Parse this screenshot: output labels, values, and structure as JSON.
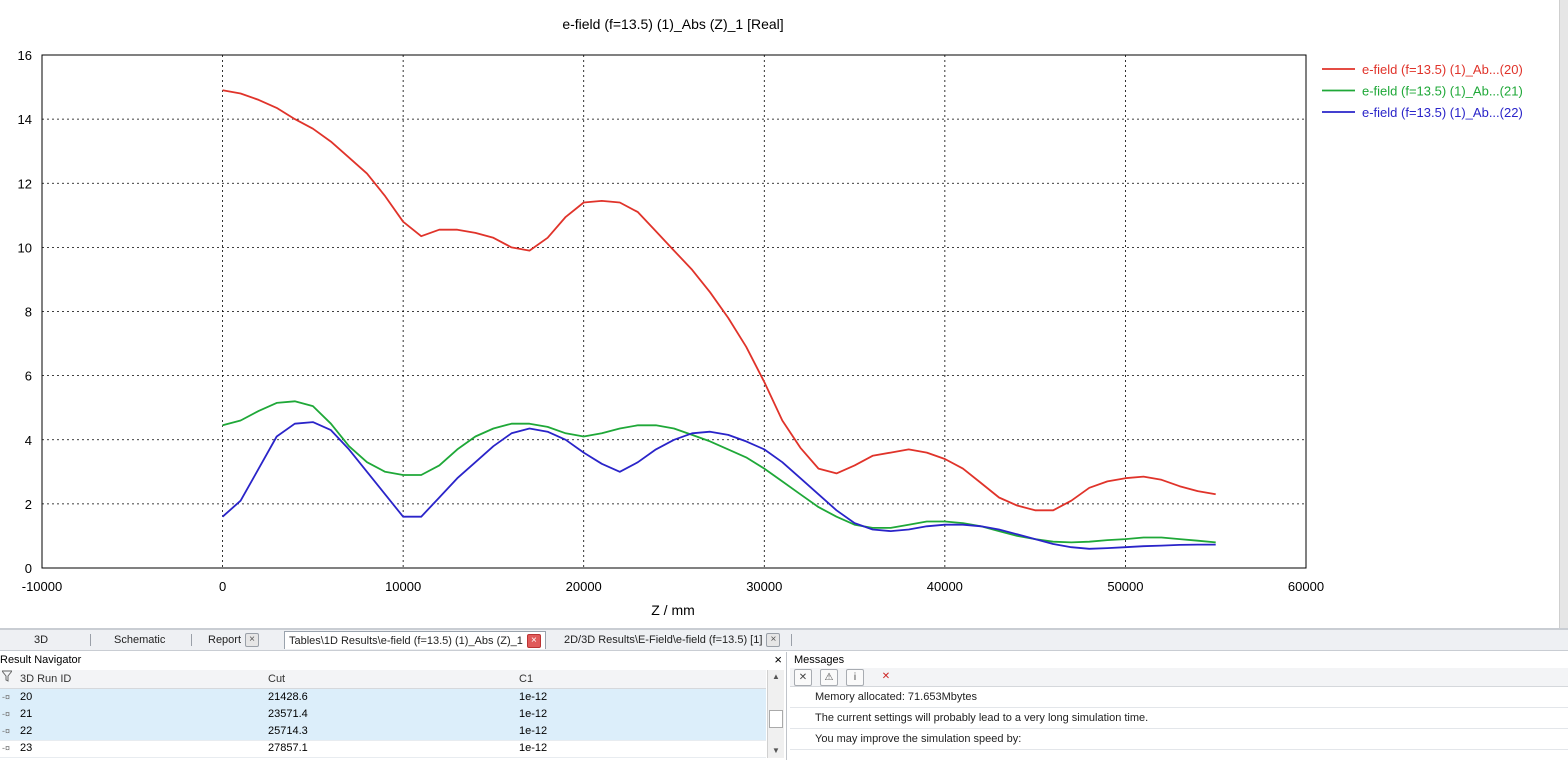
{
  "chart_data": {
    "type": "line",
    "title": "e-field (f=13.5) (1)_Abs (Z)_1 [Real]",
    "xlabel": "Z / mm",
    "ylabel": "",
    "xlim": [
      -10000,
      60000
    ],
    "ylim": [
      0,
      16
    ],
    "xticks": [
      -10000,
      0,
      10000,
      20000,
      30000,
      40000,
      50000,
      60000
    ],
    "yticks": [
      0,
      2,
      4,
      6,
      8,
      10,
      12,
      14,
      16
    ],
    "grid": true,
    "legend_position": "right",
    "series": [
      {
        "name": "e-field (f=13.5) (1)_Ab...(20)",
        "color": "#e0332a",
        "x": [
          0,
          1000,
          2000,
          3000,
          4000,
          5000,
          6000,
          7000,
          8000,
          9000,
          10000,
          11000,
          12000,
          13000,
          14000,
          15000,
          16000,
          17000,
          18000,
          19000,
          20000,
          21000,
          22000,
          23000,
          24000,
          25000,
          26000,
          27000,
          28000,
          29000,
          30000,
          31000,
          32000,
          33000,
          34000,
          35000,
          36000,
          37000,
          38000,
          39000,
          40000,
          41000,
          42000,
          43000,
          44000,
          45000,
          46000,
          47000,
          48000,
          49000,
          50000,
          51000,
          52000,
          53000,
          54000,
          55000
        ],
        "y": [
          14.9,
          14.8,
          14.6,
          14.35,
          14.0,
          13.7,
          13.3,
          12.8,
          12.3,
          11.6,
          10.8,
          10.35,
          10.55,
          10.55,
          10.45,
          10.3,
          10.0,
          9.9,
          10.3,
          10.95,
          11.4,
          11.45,
          11.4,
          11.1,
          10.5,
          9.9,
          9.3,
          8.6,
          7.8,
          6.9,
          5.8,
          4.6,
          3.75,
          3.1,
          2.95,
          3.2,
          3.5,
          3.6,
          3.7,
          3.6,
          3.4,
          3.1,
          2.65,
          2.2,
          1.95,
          1.8,
          1.8,
          2.1,
          2.5,
          2.7,
          2.8,
          2.85,
          2.75,
          2.55,
          2.4,
          2.3
        ]
      },
      {
        "name": "e-field (f=13.5) (1)_Ab...(21)",
        "color": "#1fa838",
        "x": [
          0,
          1000,
          2000,
          3000,
          4000,
          5000,
          6000,
          7000,
          8000,
          9000,
          10000,
          11000,
          12000,
          13000,
          14000,
          15000,
          16000,
          17000,
          18000,
          19000,
          20000,
          21000,
          22000,
          23000,
          24000,
          25000,
          26000,
          27000,
          28000,
          29000,
          30000,
          31000,
          32000,
          33000,
          34000,
          35000,
          36000,
          37000,
          38000,
          39000,
          40000,
          41000,
          42000,
          43000,
          44000,
          45000,
          46000,
          47000,
          48000,
          49000,
          50000,
          51000,
          52000,
          53000,
          54000,
          55000
        ],
        "y": [
          4.45,
          4.6,
          4.9,
          5.15,
          5.2,
          5.05,
          4.5,
          3.8,
          3.3,
          3.0,
          2.9,
          2.9,
          3.2,
          3.7,
          4.1,
          4.35,
          4.5,
          4.5,
          4.4,
          4.2,
          4.1,
          4.2,
          4.35,
          4.45,
          4.45,
          4.35,
          4.15,
          3.95,
          3.7,
          3.45,
          3.1,
          2.7,
          2.3,
          1.9,
          1.6,
          1.35,
          1.25,
          1.25,
          1.35,
          1.45,
          1.45,
          1.4,
          1.3,
          1.15,
          1.0,
          0.9,
          0.82,
          0.8,
          0.82,
          0.87,
          0.9,
          0.95,
          0.95,
          0.9,
          0.85,
          0.8
        ]
      },
      {
        "name": "e-field (f=13.5) (1)_Ab...(22)",
        "color": "#2a24c9",
        "x": [
          0,
          1000,
          2000,
          3000,
          4000,
          5000,
          6000,
          7000,
          8000,
          9000,
          10000,
          11000,
          12000,
          13000,
          14000,
          15000,
          16000,
          17000,
          18000,
          19000,
          20000,
          21000,
          22000,
          23000,
          24000,
          25000,
          26000,
          27000,
          28000,
          29000,
          30000,
          31000,
          32000,
          33000,
          34000,
          35000,
          36000,
          37000,
          38000,
          39000,
          40000,
          41000,
          42000,
          43000,
          44000,
          45000,
          46000,
          47000,
          48000,
          49000,
          50000,
          51000,
          52000,
          53000,
          54000,
          55000
        ],
        "y": [
          1.6,
          2.1,
          3.1,
          4.1,
          4.5,
          4.55,
          4.3,
          3.7,
          3.0,
          2.3,
          1.6,
          1.6,
          2.2,
          2.8,
          3.3,
          3.8,
          4.2,
          4.35,
          4.25,
          4.0,
          3.6,
          3.25,
          3.0,
          3.3,
          3.7,
          4.0,
          4.2,
          4.25,
          4.15,
          3.95,
          3.7,
          3.3,
          2.8,
          2.3,
          1.8,
          1.4,
          1.2,
          1.15,
          1.2,
          1.3,
          1.35,
          1.35,
          1.3,
          1.2,
          1.05,
          0.9,
          0.75,
          0.65,
          0.6,
          0.62,
          0.65,
          0.68,
          0.7,
          0.72,
          0.73,
          0.73
        ]
      }
    ]
  },
  "tabs": [
    {
      "label": "3D",
      "active": false,
      "closable": false
    },
    {
      "label": "Schematic",
      "active": false,
      "closable": false
    },
    {
      "label": "Report",
      "active": false,
      "closable": true
    },
    {
      "label": "Tables\\1D Results\\e-field (f=13.5) (1)_Abs (Z)_1",
      "active": true,
      "closable": true
    },
    {
      "label": "2D/3D Results\\E-Field\\e-field (f=13.5) [1]",
      "active": false,
      "closable": true
    }
  ],
  "result_navigator": {
    "title": "Result Navigator",
    "close_glyph": "×",
    "columns": [
      "3D Run ID",
      "Cut",
      "C1"
    ],
    "rows": [
      {
        "id": "20",
        "cut": "21428.6",
        "c1": "1e-12",
        "selected": true
      },
      {
        "id": "21",
        "cut": "23571.4",
        "c1": "1e-12",
        "selected": true
      },
      {
        "id": "22",
        "cut": "25714.3",
        "c1": "1e-12",
        "selected": true
      },
      {
        "id": "23",
        "cut": "27857.1",
        "c1": "1e-12",
        "selected": false
      }
    ]
  },
  "messages": {
    "title": "Messages",
    "lines": [
      "Memory allocated: 71.653Mbytes",
      "The current settings will probably lead to a very long simulation time.",
      "You may improve the simulation speed by:"
    ]
  }
}
